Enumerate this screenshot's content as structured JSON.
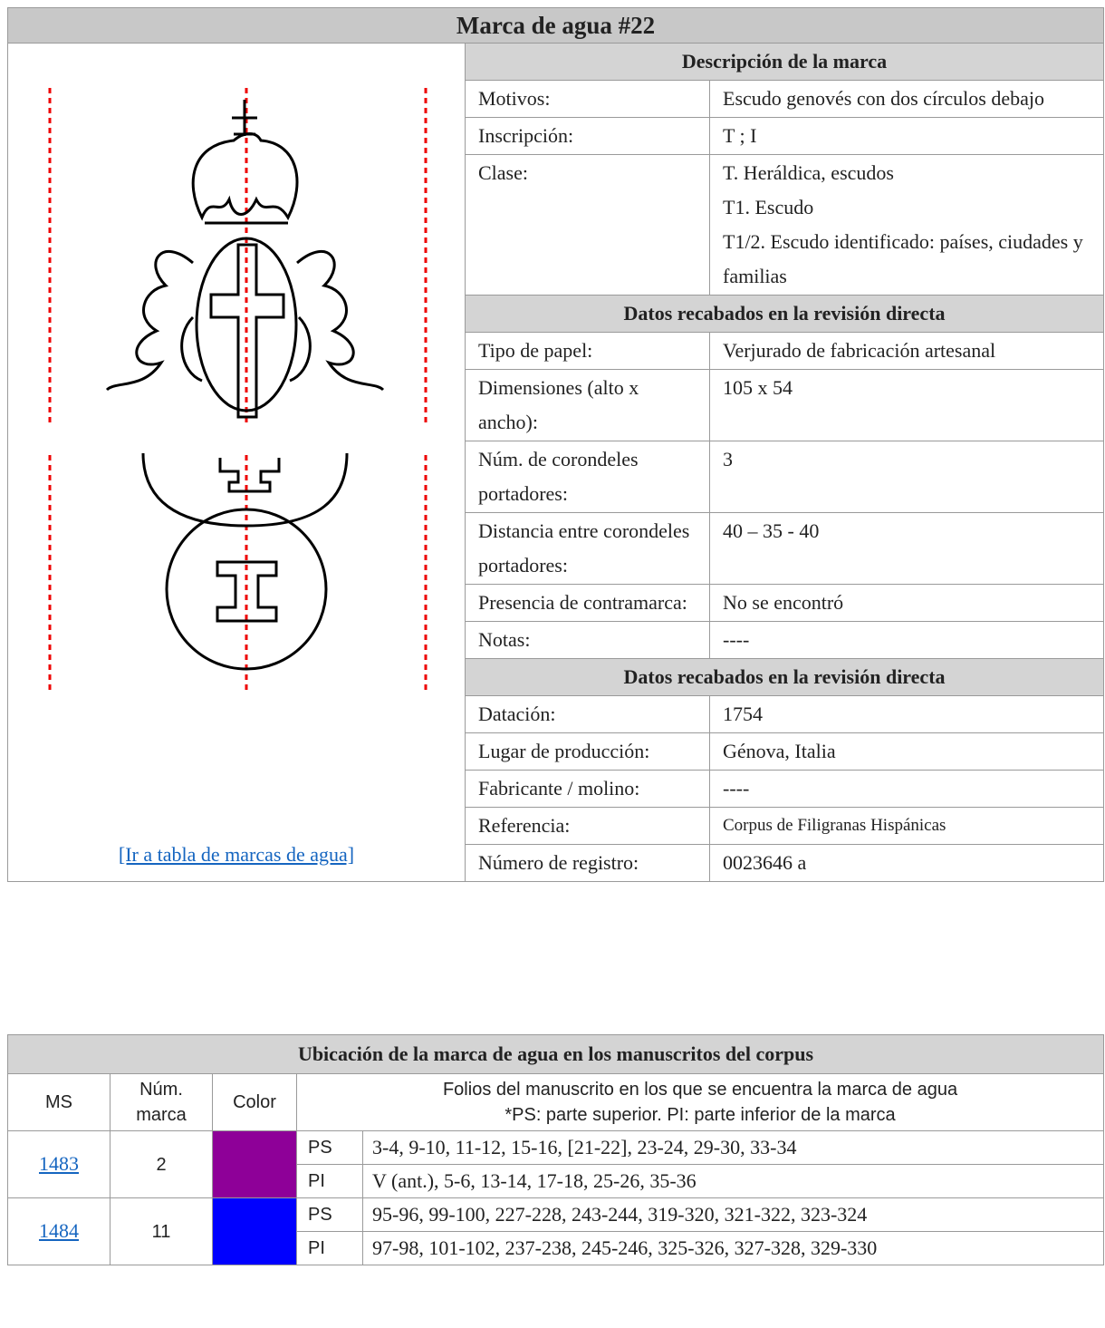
{
  "header": {
    "title": "Marca de agua #22"
  },
  "link": "[Ir a tabla de marcas de agua]",
  "description": {
    "heading": "Descripción de la marca",
    "rows": [
      {
        "label": "Motivos:",
        "value": [
          "Escudo genovés con dos círculos debajo"
        ]
      },
      {
        "label": "Inscripción:",
        "value": [
          "T ; I"
        ]
      },
      {
        "label": "Clase:",
        "value": [
          "T. Heráldica, escudos",
          "T1. Escudo",
          "T1/2. Escudo identificado: países, ciudades y familias"
        ]
      }
    ]
  },
  "review": {
    "heading": "Datos recabados en la revisión directa",
    "rows": [
      {
        "label": "Tipo de papel:",
        "value": [
          "Verjurado de fabricación artesanal"
        ]
      },
      {
        "label": "Dimensiones (alto x ancho):",
        "value": [
          "105 x 54"
        ]
      },
      {
        "label": "Núm. de corondeles portadores:",
        "value": [
          "3"
        ]
      },
      {
        "label": "Distancia entre corondeles portadores:",
        "value": [
          "40 – 35 - 40"
        ]
      },
      {
        "label": "Presencia de contramarca:",
        "value": [
          "No se encontró"
        ]
      },
      {
        "label": "Notas:",
        "value": [
          "----"
        ]
      }
    ]
  },
  "origin": {
    "heading": "Datos recabados en la revisión directa",
    "rows": [
      {
        "label": "Datación:",
        "value": [
          "1754"
        ]
      },
      {
        "label": "Lugar de producción:",
        "value": [
          "Génova, Italia"
        ]
      },
      {
        "label": "Fabricante / molino:",
        "value": [
          "----"
        ]
      },
      {
        "label": "Referencia:",
        "value": [
          "Corpus de Filigranas Hispánicas"
        ]
      },
      {
        "label": "Número de registro:",
        "value": [
          "0023646 a"
        ]
      }
    ]
  },
  "location": {
    "heading": "Ubicación de la marca de agua en los manuscritos del corpus",
    "columns": [
      "MS",
      "Núm. marca",
      "Color"
    ],
    "folios_heading": [
      "Folios del manuscrito en los que se encuentra la marca de agua",
      "*PS: parte superior. PI: parte inferior de la marca"
    ],
    "manuscripts": [
      {
        "ms": "1483",
        "mark": "2",
        "color": "#8e0098",
        "parts": [
          {
            "part": "PS",
            "folios": "3-4, 9-10, 11-12, 15-16, [21-22], 23-24, 29-30, 33-34"
          },
          {
            "part": "PI",
            "folios": "V (ant.), 5-6, 13-14, 17-18, 25-26, 35-36"
          }
        ]
      },
      {
        "ms": "1484",
        "mark": "11",
        "color": "#0000ff",
        "parts": [
          {
            "part": "PS",
            "folios": "95-96, 99-100, 227-228, 243-244, 319-320, 321-322, 323-324"
          },
          {
            "part": "PI",
            "folios": "97-98, 101-102, 237-238, 245-246, 325-326, 327-328, 329-330"
          }
        ]
      }
    ]
  }
}
